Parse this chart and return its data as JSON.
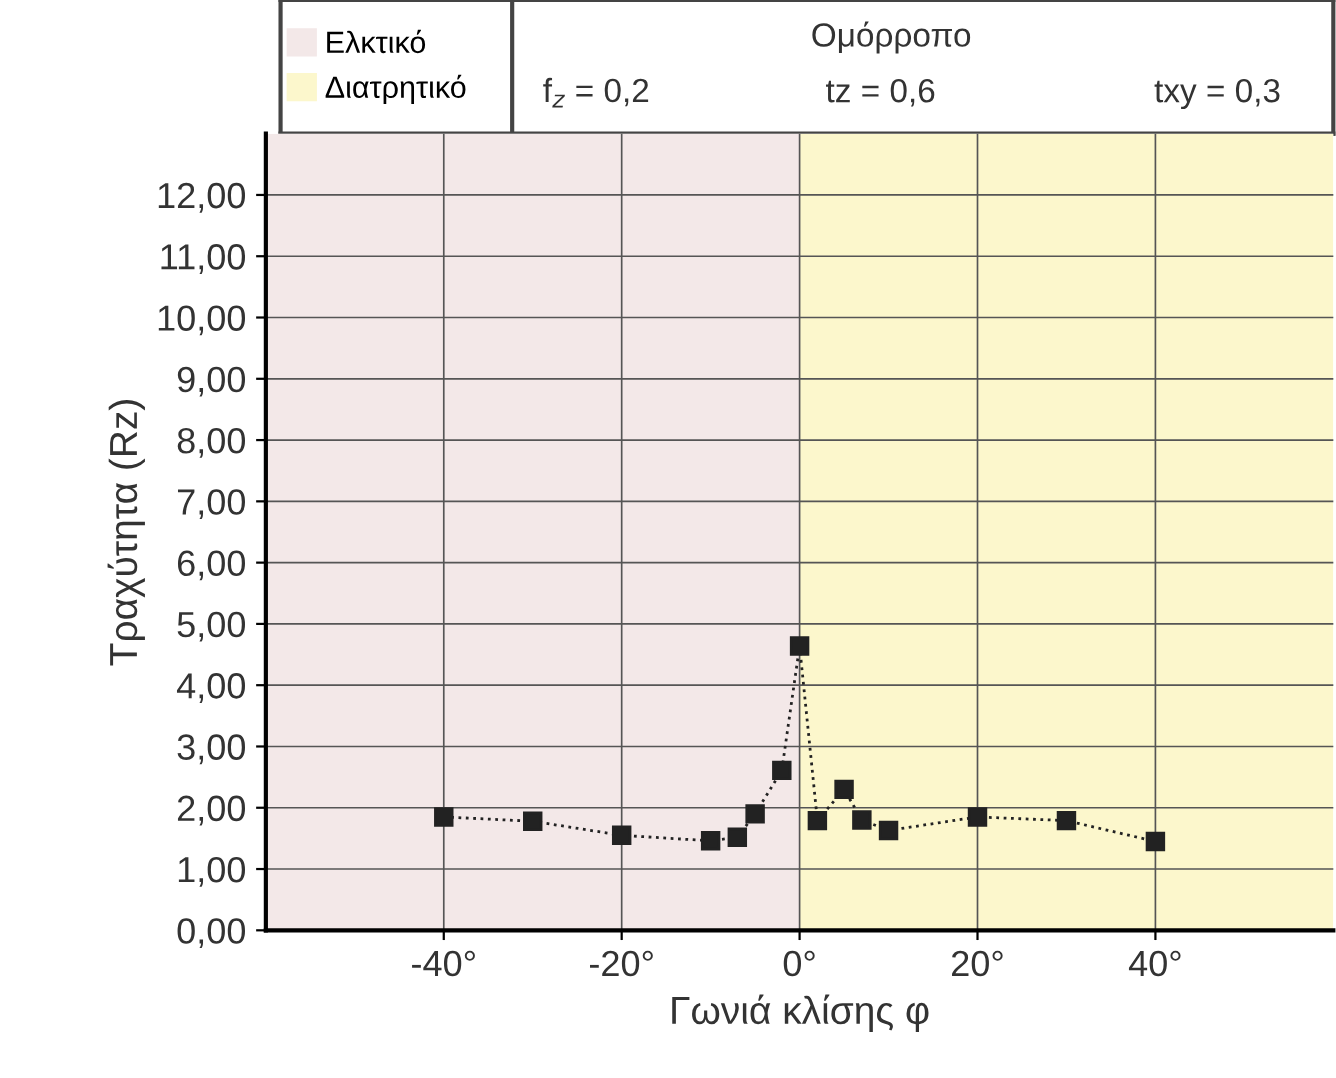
{
  "chart_data": {
    "type": "line",
    "xlabel": "Γωνιά κλίσης φ",
    "ylabel": "Τραχύτητα (Rz)",
    "annotations": [
      "Ομόρροπο",
      "f$_{z}$ = 0,2",
      "tz = 0,6",
      "txy = 0,3"
    ],
    "series": [
      {
        "color": "#222222",
        "x": [
          -40,
          -30,
          -20,
          -10,
          -7,
          -5,
          -2,
          0,
          2,
          5,
          7,
          10,
          20,
          30,
          40
        ],
        "values": [
          1.85,
          1.78,
          1.55,
          1.46,
          1.52,
          1.9,
          2.61,
          4.64,
          1.79,
          2.3,
          1.8,
          1.63,
          1.85,
          1.79,
          1.45
        ]
      }
    ],
    "bands": [
      {
        "axis": "x",
        "from": -60,
        "to": 0,
        "label": "Ελκτικό",
        "color": "#f3e8e8"
      },
      {
        "axis": "x",
        "from": 0,
        "to": 60,
        "label": "Διατρητικό",
        "color": "#fcf7cc"
      }
    ],
    "xlim": [
      -60,
      60
    ],
    "xticks": [
      {
        "value": -40,
        "label": "-40°"
      },
      {
        "value": -20,
        "label": "-20°"
      },
      {
        "value": 0,
        "label": "0°"
      },
      {
        "value": 20,
        "label": "20°"
      },
      {
        "value": 40,
        "label": "40°"
      }
    ],
    "ylim": [
      0,
      13
    ],
    "yticks": [
      {
        "value": 0,
        "label": "0,00"
      },
      {
        "value": 1,
        "label": "1,00"
      },
      {
        "value": 2,
        "label": "2,00"
      },
      {
        "value": 3,
        "label": "3,00"
      },
      {
        "value": 4,
        "label": "4,00"
      },
      {
        "value": 5,
        "label": "5,00"
      },
      {
        "value": 6,
        "label": "6,00"
      },
      {
        "value": 7,
        "label": "7,00"
      },
      {
        "value": 8,
        "label": "8,00"
      },
      {
        "value": 9,
        "label": "9,00"
      },
      {
        "value": 10,
        "label": "10,00"
      },
      {
        "value": 11,
        "label": "11,00"
      },
      {
        "value": 12,
        "label": "12,00"
      }
    ],
    "grid": true,
    "legend": "top left",
    "marker": "square",
    "line_style": "dotted"
  }
}
